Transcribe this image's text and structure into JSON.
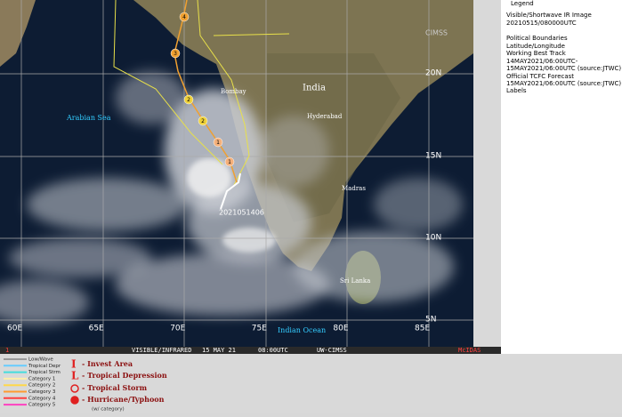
{
  "map": {
    "labels": {
      "country": "India",
      "sea": "Arabian Sea",
      "ocean": "Indian Ocean",
      "bombay": "Bombay",
      "hyderabad": "Hyderabad",
      "madras": "Madras",
      "sri_lanka": "Sri Lanka",
      "track_time": "2021051406"
    },
    "lat_labels": [
      "20N",
      "15N",
      "10N",
      "5N"
    ],
    "lon_labels": [
      "60E",
      "65E",
      "70E",
      "75E",
      "80E",
      "85E"
    ],
    "forecast_labels": [
      "1",
      "1",
      "2",
      "2",
      "3",
      "4"
    ],
    "logo": "CIMSS"
  },
  "legend": {
    "title": "Legend",
    "lines": [
      "Visible/Shortwave IR Image",
      "20210515/080000UTC",
      "Political Boundaries",
      "Latitude/Longitude",
      "Working Best Track",
      "14MAY2021/06:00UTC-",
      "15MAY2021/06:00UTC  (source:JTWC)",
      "Official TCFC Forecast",
      "15MAY2021/06:00UTC  (source:JTWC)",
      "Labels"
    ]
  },
  "footer": {
    "left": "1",
    "product": "VISIBLE/INFRARED",
    "date": "15 MAY 21",
    "time": "08:00UTC",
    "source": "UW-CIMSS",
    "right": "McIDAS"
  },
  "key": {
    "categories": [
      "Low/Wave",
      "Tropical Depr",
      "Tropical Strm",
      "Category 1",
      "Category 2",
      "Category 3",
      "Category 4",
      "Category 5"
    ],
    "symbols": [
      "I",
      "L"
    ],
    "descriptions": [
      "- Invest Area",
      "- Tropical Depression",
      "- Tropical Storm",
      "- Hurricane/Typhoon"
    ],
    "note": "(w/ category)"
  }
}
